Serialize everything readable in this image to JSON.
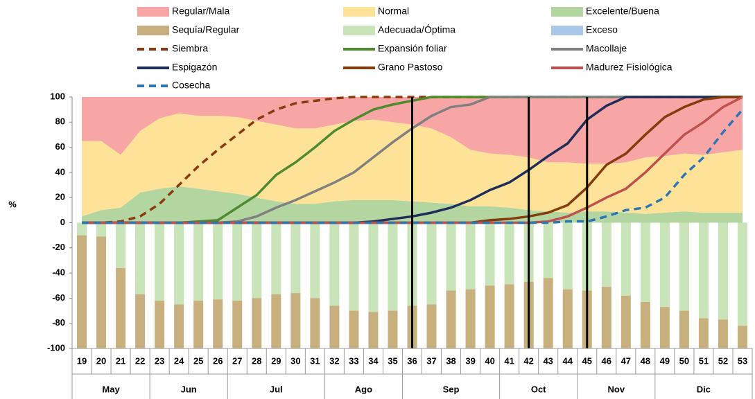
{
  "chart_data": {
    "type": "combo",
    "ylabel": "%",
    "categories": [
      "19",
      "20",
      "21",
      "22",
      "23",
      "24",
      "25",
      "26",
      "27",
      "28",
      "29",
      "30",
      "31",
      "32",
      "33",
      "34",
      "35",
      "36",
      "37",
      "38",
      "39",
      "40",
      "41",
      "42",
      "43",
      "44",
      "45",
      "46",
      "47",
      "48",
      "49",
      "50",
      "51",
      "52",
      "53"
    ],
    "months": [
      {
        "label": "May",
        "start": "19",
        "end": "22"
      },
      {
        "label": "Jun",
        "start": "23",
        "end": "26"
      },
      {
        "label": "Jul",
        "start": "27",
        "end": "31"
      },
      {
        "label": "Ago",
        "start": "32",
        "end": "35"
      },
      {
        "label": "Sep",
        "start": "36",
        "end": "40"
      },
      {
        "label": "Oct",
        "start": "41",
        "end": "44"
      },
      {
        "label": "Nov",
        "start": "45",
        "end": "48"
      },
      {
        "label": "Dic",
        "start": "49",
        "end": "53"
      }
    ],
    "vlines": [
      "36",
      "42",
      "45"
    ],
    "ylim": [
      -100,
      100
    ],
    "yticks": [
      -100,
      -80,
      -60,
      -40,
      -20,
      0,
      20,
      40,
      60,
      80,
      100
    ],
    "series": [
      {
        "name": "Regular/Mala",
        "type": "area",
        "color": "#f7a5a5",
        "values": [
          35,
          35,
          46,
          27,
          17,
          13,
          15,
          15,
          16,
          19,
          22,
          25,
          25,
          22,
          19,
          18,
          20,
          22,
          25,
          32,
          42,
          45,
          46,
          48,
          52,
          52,
          53,
          53,
          52,
          48,
          47,
          45,
          46,
          44,
          42
        ]
      },
      {
        "name": "Normal",
        "type": "area",
        "color": "#fde298",
        "values": [
          60,
          55,
          42,
          49,
          56,
          58,
          58,
          60,
          61,
          61,
          61,
          60,
          60,
          61,
          63,
          64,
          62,
          61,
          59,
          53,
          45,
          42,
          42,
          42,
          39,
          40,
          38,
          38,
          40,
          45,
          45,
          46,
          46,
          48,
          50
        ]
      },
      {
        "name": "Excelente/Buena",
        "type": "area",
        "color": "#b3d6a0",
        "values": [
          5,
          10,
          12,
          24,
          27,
          29,
          27,
          25,
          23,
          20,
          17,
          15,
          15,
          17,
          18,
          18,
          18,
          17,
          16,
          15,
          13,
          13,
          12,
          10,
          9,
          8,
          9,
          9,
          8,
          7,
          8,
          9,
          8,
          8,
          8
        ]
      },
      {
        "name": "Sequía/Regular",
        "type": "bar",
        "color": "#c8b07e",
        "values": [
          -90,
          -89,
          -64,
          -43,
          -38,
          -35,
          -38,
          -39,
          -38,
          -40,
          -43,
          -44,
          -40,
          -34,
          -30,
          -29,
          -30,
          -34,
          -35,
          -46,
          -47,
          -50,
          -51,
          -53,
          -56,
          -47,
          -46,
          -49,
          -42,
          -37,
          -33,
          -30,
          -24,
          -23,
          -18
        ]
      },
      {
        "name": "Adecuada/Óptima",
        "type": "bar",
        "color": "#c9e4b8",
        "values": [
          -10,
          -11,
          -36,
          -57,
          -62,
          -65,
          -62,
          -61,
          -62,
          -60,
          -57,
          -56,
          -60,
          -66,
          -70,
          -71,
          -70,
          -66,
          -65,
          -54,
          -53,
          -50,
          -49,
          -47,
          -44,
          -53,
          -54,
          -51,
          -58,
          -63,
          -67,
          -70,
          -76,
          -77,
          -82
        ]
      },
      {
        "name": "Exceso",
        "type": "bar",
        "color": "#a9c8e8",
        "values": [
          0,
          0,
          0,
          0,
          0,
          0,
          0,
          0,
          0,
          0,
          0,
          0,
          0,
          0,
          0,
          0,
          0,
          0,
          0,
          0,
          0,
          0,
          0,
          0,
          0,
          0,
          0,
          0,
          0,
          0,
          0,
          0,
          0,
          0,
          0
        ]
      },
      {
        "name": "Siembra",
        "type": "line",
        "dashed": true,
        "color": "#8b3a0f",
        "values": [
          0,
          0,
          1,
          5,
          15,
          30,
          45,
          58,
          70,
          82,
          90,
          95,
          97,
          99,
          100,
          100,
          100,
          100,
          100,
          100,
          100,
          100,
          100,
          100,
          100,
          100,
          100,
          100,
          100,
          100,
          100,
          100,
          100,
          100,
          100
        ]
      },
      {
        "name": "Expansión foliar",
        "type": "line",
        "color": "#4e8a2e",
        "values": [
          0,
          0,
          0,
          0,
          0,
          0,
          1,
          2,
          12,
          22,
          38,
          48,
          60,
          73,
          82,
          90,
          94,
          97,
          100,
          100,
          100,
          100,
          100,
          100,
          100,
          100,
          100,
          100,
          100,
          100,
          100,
          100,
          100,
          100,
          100
        ]
      },
      {
        "name": "Macollaje",
        "type": "line",
        "color": "#808080",
        "values": [
          0,
          0,
          0,
          0,
          0,
          0,
          0,
          0,
          1,
          5,
          12,
          18,
          25,
          32,
          40,
          52,
          64,
          75,
          85,
          92,
          94,
          100,
          100,
          100,
          100,
          100,
          100,
          100,
          100,
          100,
          100,
          100,
          100,
          100,
          100
        ]
      },
      {
        "name": "Espigazón",
        "type": "line",
        "color": "#1f2d5a",
        "values": [
          0,
          0,
          0,
          0,
          0,
          0,
          0,
          0,
          0,
          0,
          0,
          0,
          0,
          0,
          0,
          1,
          3,
          5,
          8,
          12,
          18,
          26,
          32,
          42,
          53,
          63,
          82,
          93,
          100,
          100,
          100,
          100,
          100,
          100,
          100
        ]
      },
      {
        "name": "Grano Pastoso",
        "type": "line",
        "color": "#843c0c",
        "values": [
          0,
          0,
          0,
          0,
          0,
          0,
          0,
          0,
          0,
          0,
          0,
          0,
          0,
          0,
          0,
          0,
          0,
          0,
          0,
          0,
          0,
          2,
          3,
          5,
          8,
          14,
          28,
          46,
          55,
          70,
          84,
          92,
          98,
          100,
          100
        ]
      },
      {
        "name": "Madurez Fisiológica",
        "type": "line",
        "color": "#c0504d",
        "values": [
          0,
          0,
          0,
          0,
          0,
          0,
          0,
          0,
          0,
          0,
          0,
          0,
          0,
          0,
          0,
          0,
          0,
          0,
          0,
          0,
          0,
          0,
          0,
          0,
          1,
          5,
          12,
          20,
          27,
          40,
          55,
          70,
          80,
          92,
          100
        ]
      },
      {
        "name": "Cosecha",
        "type": "line",
        "dashed": true,
        "color": "#2e75b6",
        "values": [
          0,
          0,
          0,
          0,
          0,
          0,
          0,
          0,
          0,
          0,
          0,
          0,
          0,
          0,
          0,
          0,
          0,
          0,
          0,
          0,
          0,
          0,
          0,
          0,
          0,
          1,
          1,
          5,
          10,
          12,
          20,
          38,
          52,
          72,
          90
        ]
      }
    ]
  }
}
